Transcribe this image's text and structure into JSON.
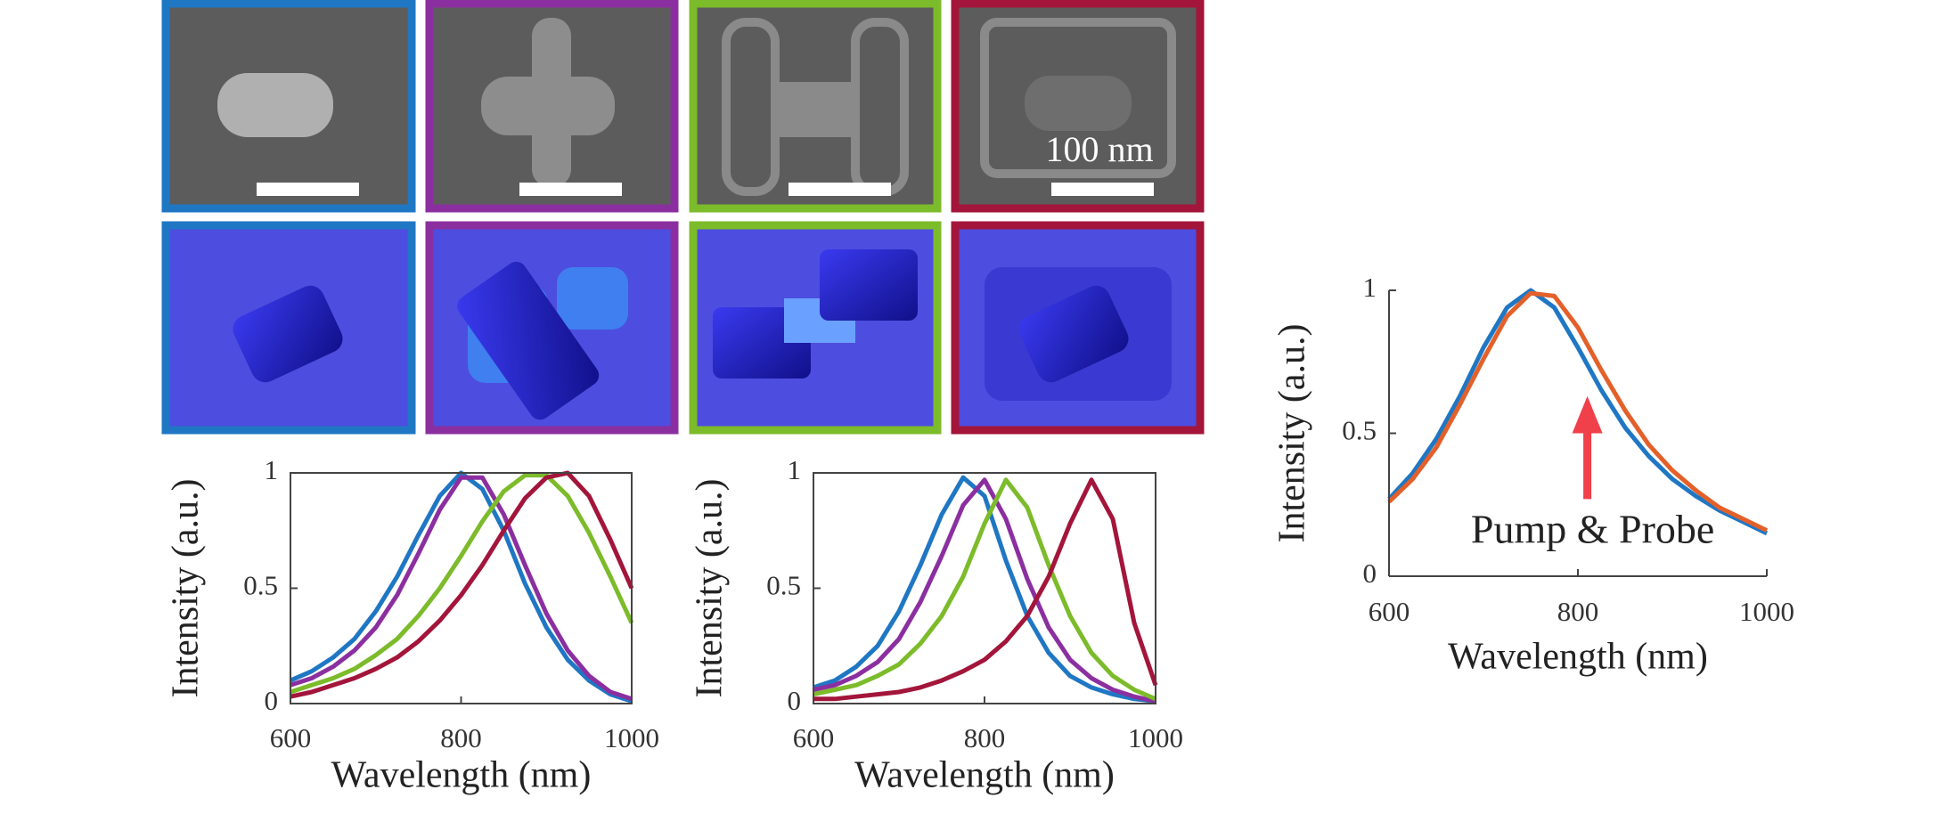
{
  "scale_bar": {
    "label": "100 nm"
  },
  "chart_data": [
    {
      "type": "line",
      "x_label": "Wavelength (nm)",
      "y_label": "Intensity (a.u.)",
      "x": [
        600,
        625,
        650,
        675,
        700,
        725,
        750,
        775,
        800,
        825,
        850,
        875,
        900,
        925,
        950,
        975,
        1000
      ],
      "series": [
        {
          "color": "#1f77c4",
          "values": [
            0.1,
            0.14,
            0.2,
            0.28,
            0.4,
            0.55,
            0.73,
            0.9,
            1.0,
            0.93,
            0.75,
            0.52,
            0.33,
            0.19,
            0.1,
            0.04,
            0.01
          ]
        },
        {
          "color": "#8b2fa0",
          "values": [
            0.08,
            0.11,
            0.16,
            0.23,
            0.33,
            0.47,
            0.65,
            0.84,
            0.98,
            0.98,
            0.82,
            0.6,
            0.39,
            0.23,
            0.12,
            0.05,
            0.02
          ]
        },
        {
          "color": "#7cbb2a",
          "values": [
            0.05,
            0.08,
            0.11,
            0.15,
            0.21,
            0.28,
            0.38,
            0.5,
            0.64,
            0.79,
            0.92,
            0.99,
            0.99,
            0.9,
            0.74,
            0.55,
            0.35
          ]
        },
        {
          "color": "#a3153a",
          "values": [
            0.03,
            0.05,
            0.08,
            0.11,
            0.15,
            0.2,
            0.27,
            0.36,
            0.47,
            0.6,
            0.75,
            0.89,
            0.98,
            1.0,
            0.9,
            0.71,
            0.5
          ]
        }
      ],
      "xlim": [
        600,
        1000
      ],
      "xticks": [
        600,
        800,
        1000
      ],
      "ylim": [
        0,
        1
      ],
      "yticks": [
        0,
        0.5,
        1
      ],
      "frame": true
    },
    {
      "type": "line",
      "x_label": "Wavelength (nm)",
      "y_label": "Intensity (a.u.)",
      "x": [
        600,
        625,
        650,
        675,
        700,
        725,
        750,
        775,
        800,
        825,
        850,
        875,
        900,
        925,
        950,
        975,
        1000
      ],
      "series": [
        {
          "color": "#1f77c4",
          "values": [
            0.07,
            0.1,
            0.16,
            0.25,
            0.4,
            0.6,
            0.82,
            0.98,
            0.9,
            0.62,
            0.38,
            0.22,
            0.12,
            0.07,
            0.04,
            0.02,
            0.01
          ]
        },
        {
          "color": "#8b2fa0",
          "values": [
            0.06,
            0.08,
            0.12,
            0.18,
            0.28,
            0.44,
            0.64,
            0.86,
            0.97,
            0.8,
            0.54,
            0.33,
            0.19,
            0.11,
            0.06,
            0.03,
            0.01
          ]
        },
        {
          "color": "#7cbb2a",
          "values": [
            0.04,
            0.06,
            0.08,
            0.12,
            0.17,
            0.26,
            0.38,
            0.55,
            0.78,
            0.97,
            0.85,
            0.6,
            0.38,
            0.22,
            0.12,
            0.06,
            0.02
          ]
        },
        {
          "color": "#a3153a",
          "values": [
            0.02,
            0.02,
            0.03,
            0.04,
            0.05,
            0.07,
            0.1,
            0.14,
            0.19,
            0.27,
            0.38,
            0.55,
            0.78,
            0.97,
            0.8,
            0.35,
            0.08
          ]
        }
      ],
      "xlim": [
        600,
        1000
      ],
      "xticks": [
        600,
        800,
        1000
      ],
      "ylim": [
        0,
        1
      ],
      "yticks": [
        0,
        0.5,
        1
      ],
      "frame": true
    },
    {
      "type": "line",
      "x_label": "Wavelength (nm)",
      "y_label": "Intensity (a.u.)",
      "annotation": "Pump & Probe",
      "x": [
        600,
        625,
        650,
        675,
        700,
        725,
        750,
        775,
        800,
        825,
        850,
        875,
        900,
        925,
        950,
        975,
        1000
      ],
      "series": [
        {
          "color": "#1f77c4",
          "values": [
            0.27,
            0.36,
            0.48,
            0.63,
            0.8,
            0.94,
            1.0,
            0.94,
            0.8,
            0.65,
            0.52,
            0.42,
            0.34,
            0.28,
            0.23,
            0.19,
            0.15
          ]
        },
        {
          "color": "#e3602a",
          "values": [
            0.26,
            0.34,
            0.45,
            0.6,
            0.76,
            0.91,
            0.99,
            0.98,
            0.87,
            0.72,
            0.58,
            0.46,
            0.37,
            0.3,
            0.24,
            0.2,
            0.16
          ]
        }
      ],
      "xlim": [
        600,
        1000
      ],
      "xticks": [
        600,
        800,
        1000
      ],
      "ylim": [
        0,
        1
      ],
      "yticks": [
        0,
        0.5,
        1
      ],
      "frame": false
    }
  ]
}
